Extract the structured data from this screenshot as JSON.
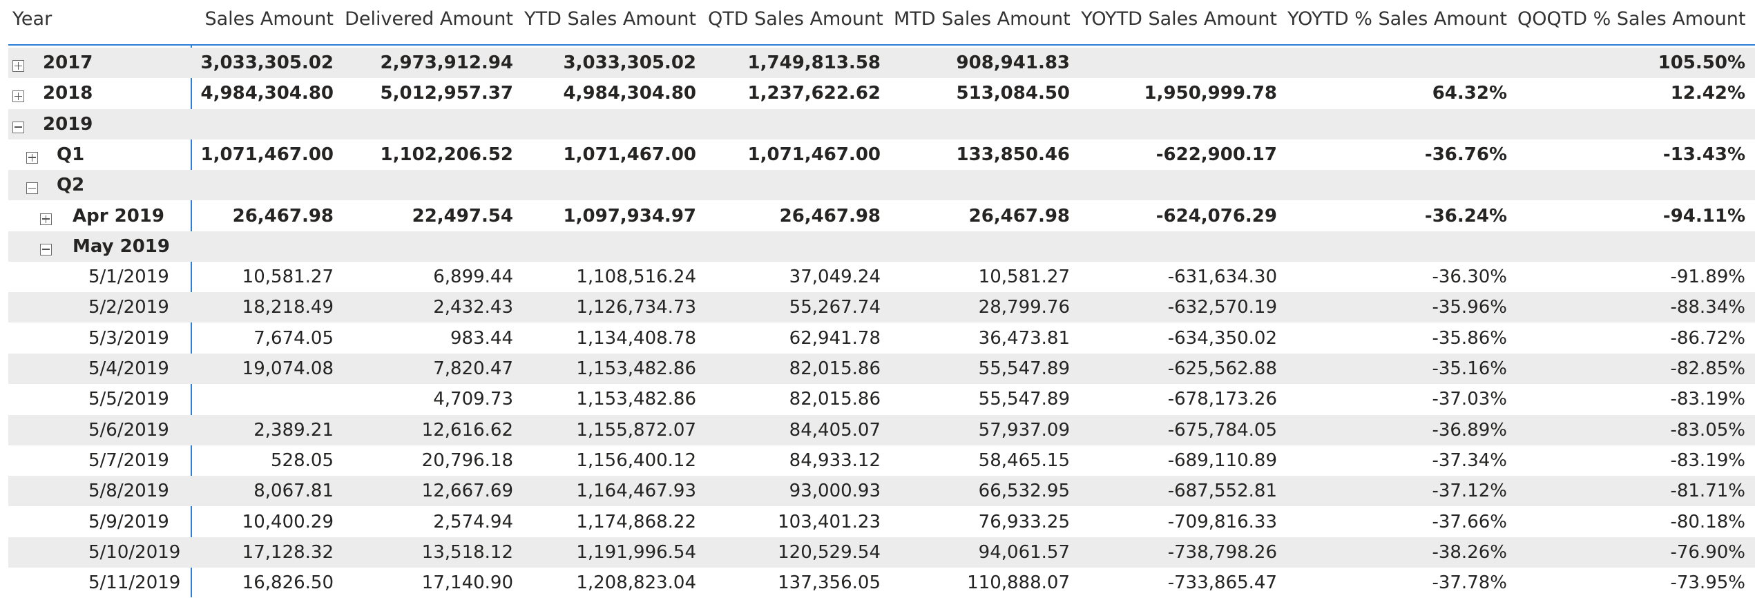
{
  "columns": [
    "Year",
    "Sales Amount",
    "Delivered Amount",
    "YTD Sales Amount",
    "QTD Sales Amount",
    "MTD Sales Amount",
    "YOYTD Sales Amount",
    "YOYTD % Sales Amount",
    "QOQTD % Sales Amount"
  ],
  "rows": [
    {
      "label": "2017",
      "level": 0,
      "toggle": "plus",
      "bold": true,
      "values": [
        "3,033,305.02",
        "2,973,912.94",
        "3,033,305.02",
        "1,749,813.58",
        "908,941.83",
        "",
        "",
        "105.50%"
      ]
    },
    {
      "label": "2018",
      "level": 0,
      "toggle": "plus",
      "bold": true,
      "values": [
        "4,984,304.80",
        "5,012,957.37",
        "4,984,304.80",
        "1,237,622.62",
        "513,084.50",
        "1,950,999.78",
        "64.32%",
        "12.42%"
      ]
    },
    {
      "label": "2019",
      "level": 0,
      "toggle": "minus",
      "bold": true,
      "values": [
        "",
        "",
        "",
        "",
        "",
        "",
        "",
        ""
      ]
    },
    {
      "label": "Q1",
      "level": 1,
      "toggle": "plus",
      "bold": true,
      "values": [
        "1,071,467.00",
        "1,102,206.52",
        "1,071,467.00",
        "1,071,467.00",
        "133,850.46",
        "-622,900.17",
        "-36.76%",
        "-13.43%"
      ]
    },
    {
      "label": "Q2",
      "level": 1,
      "toggle": "minus",
      "bold": true,
      "values": [
        "",
        "",
        "",
        "",
        "",
        "",
        "",
        ""
      ]
    },
    {
      "label": "Apr 2019",
      "level": 2,
      "toggle": "plus",
      "bold": true,
      "values": [
        "26,467.98",
        "22,497.54",
        "1,097,934.97",
        "26,467.98",
        "26,467.98",
        "-624,076.29",
        "-36.24%",
        "-94.11%"
      ]
    },
    {
      "label": "May 2019",
      "level": 2,
      "toggle": "minus",
      "bold": true,
      "values": [
        "",
        "",
        "",
        "",
        "",
        "",
        "",
        ""
      ]
    },
    {
      "label": "5/1/2019",
      "level": 3,
      "toggle": "",
      "bold": false,
      "values": [
        "10,581.27",
        "6,899.44",
        "1,108,516.24",
        "37,049.24",
        "10,581.27",
        "-631,634.30",
        "-36.30%",
        "-91.89%"
      ]
    },
    {
      "label": "5/2/2019",
      "level": 3,
      "toggle": "",
      "bold": false,
      "values": [
        "18,218.49",
        "2,432.43",
        "1,126,734.73",
        "55,267.74",
        "28,799.76",
        "-632,570.19",
        "-35.96%",
        "-88.34%"
      ]
    },
    {
      "label": "5/3/2019",
      "level": 3,
      "toggle": "",
      "bold": false,
      "values": [
        "7,674.05",
        "983.44",
        "1,134,408.78",
        "62,941.78",
        "36,473.81",
        "-634,350.02",
        "-35.86%",
        "-86.72%"
      ]
    },
    {
      "label": "5/4/2019",
      "level": 3,
      "toggle": "",
      "bold": false,
      "values": [
        "19,074.08",
        "7,820.47",
        "1,153,482.86",
        "82,015.86",
        "55,547.89",
        "-625,562.88",
        "-35.16%",
        "-82.85%"
      ]
    },
    {
      "label": "5/5/2019",
      "level": 3,
      "toggle": "",
      "bold": false,
      "values": [
        "",
        "4,709.73",
        "1,153,482.86",
        "82,015.86",
        "55,547.89",
        "-678,173.26",
        "-37.03%",
        "-83.19%"
      ]
    },
    {
      "label": "5/6/2019",
      "level": 3,
      "toggle": "",
      "bold": false,
      "values": [
        "2,389.21",
        "12,616.62",
        "1,155,872.07",
        "84,405.07",
        "57,937.09",
        "-675,784.05",
        "-36.89%",
        "-83.05%"
      ]
    },
    {
      "label": "5/7/2019",
      "level": 3,
      "toggle": "",
      "bold": false,
      "values": [
        "528.05",
        "20,796.18",
        "1,156,400.12",
        "84,933.12",
        "58,465.15",
        "-689,110.89",
        "-37.34%",
        "-83.19%"
      ]
    },
    {
      "label": "5/8/2019",
      "level": 3,
      "toggle": "",
      "bold": false,
      "values": [
        "8,067.81",
        "12,667.69",
        "1,164,467.93",
        "93,000.93",
        "66,532.95",
        "-687,552.81",
        "-37.12%",
        "-81.71%"
      ]
    },
    {
      "label": "5/9/2019",
      "level": 3,
      "toggle": "",
      "bold": false,
      "values": [
        "10,400.29",
        "2,574.94",
        "1,174,868.22",
        "103,401.23",
        "76,933.25",
        "-709,816.33",
        "-37.66%",
        "-80.18%"
      ]
    },
    {
      "label": "5/10/2019",
      "level": 3,
      "toggle": "",
      "bold": false,
      "values": [
        "17,128.32",
        "13,518.12",
        "1,191,996.54",
        "120,529.54",
        "94,061.57",
        "-738,798.26",
        "-38.26%",
        "-76.90%"
      ]
    },
    {
      "label": "5/11/2019",
      "level": 3,
      "toggle": "",
      "bold": false,
      "values": [
        "16,826.50",
        "17,140.90",
        "1,208,823.04",
        "137,356.05",
        "110,888.07",
        "-733,865.47",
        "-37.78%",
        "-73.95%"
      ]
    }
  ]
}
